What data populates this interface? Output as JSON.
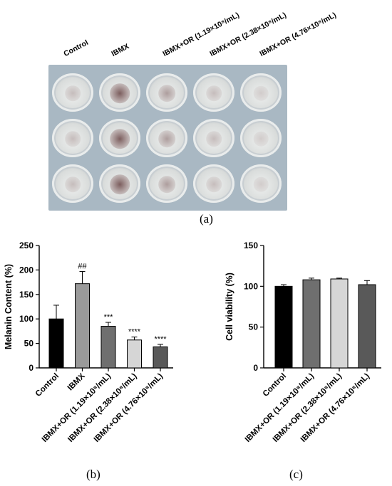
{
  "panel_a": {
    "column_labels": [
      "Control",
      "IBMX",
      "IBMX+OR (1.19×10⁸/mL)",
      "IBMX+OR (2.38×10⁸/mL)",
      "IBMX+OR (4.76×10⁸/mL)"
    ],
    "rows": 3,
    "pigment_levels": [
      0.2,
      0.95,
      0.45,
      0.2,
      0.08
    ],
    "caption": "(a)"
  },
  "panel_b_caption": "(b)",
  "panel_c_caption": "(c)",
  "bar_colors": [
    "#000000",
    "#9a9a9a",
    "#6f6f6f",
    "#d6d6d6",
    "#595959"
  ],
  "chart_data": [
    {
      "type": "bar",
      "categories": [
        "Control",
        "IBMX",
        "IBMX+OR (1.19×10⁸/mL)",
        "IBMX+OR (2.38×10⁸/mL)",
        "IBMX+OR (4.76×10⁸/mL)"
      ],
      "values": [
        100,
        172,
        85,
        57,
        43
      ],
      "errors": [
        28,
        25,
        8,
        6,
        5
      ],
      "annotations": [
        "",
        "##",
        "***",
        "****",
        "****"
      ],
      "xlabel": "",
      "ylabel": "Melanin Content (%)",
      "ylim": [
        0,
        250
      ],
      "yticks": [
        0,
        50,
        100,
        150,
        200,
        250
      ],
      "grid": false
    },
    {
      "type": "bar",
      "categories": [
        "Control",
        "IBMX+OR (1.19×10⁸/mL)",
        "IBMX+OR (2.38×10⁸/mL)",
        "IBMX+OR (4.76×10⁸/mL)"
      ],
      "values": [
        100,
        108,
        109,
        102
      ],
      "errors": [
        2,
        2,
        1,
        5
      ],
      "annotations": [
        "",
        "",
        "",
        ""
      ],
      "xlabel": "",
      "ylabel": "Cell viability (%)",
      "ylim": [
        0,
        150
      ],
      "yticks": [
        0,
        50,
        100,
        150
      ],
      "grid": false
    }
  ]
}
